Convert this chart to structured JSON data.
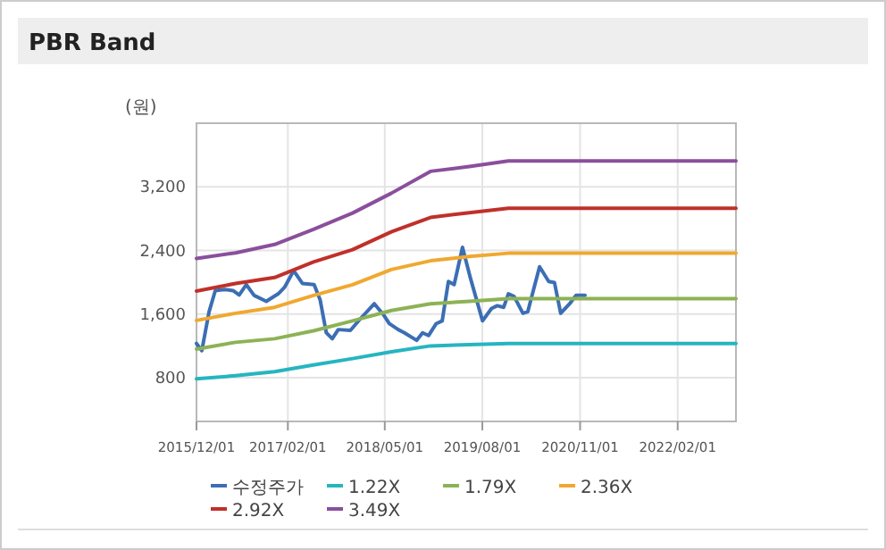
{
  "chart_data": {
    "type": "line",
    "title": "PBR Band",
    "ylabel": "(원)",
    "xlim": [
      "2015-12-01",
      "2022-11-01"
    ],
    "xticks": [
      {
        "value": "2015-12-01",
        "label": "2015/12/01"
      },
      {
        "value": "2017-02-01",
        "label": "2017/02/01"
      },
      {
        "value": "2018-05-01",
        "label": "2018/05/01"
      },
      {
        "value": "2019-08-01",
        "label": "2019/08/01"
      },
      {
        "value": "2020-11-01",
        "label": "2020/11/01"
      },
      {
        "value": "2022-02-01",
        "label": "2022/02/01"
      }
    ],
    "ylim": [
      250,
      4000
    ],
    "yticks": [
      {
        "value": 800,
        "label": "800"
      },
      {
        "value": 1600,
        "label": "1,600"
      },
      {
        "value": 2400,
        "label": "2,400"
      },
      {
        "value": 3200,
        "label": "3,200"
      }
    ],
    "grid": true,
    "legend": "bottom",
    "marker": "none",
    "line_style": "solid",
    "series": [
      {
        "name": "수정주가",
        "color": "#3c6eb4",
        "x": [
          "2015-12-01",
          "2015-12-26",
          "2016-01-29",
          "2016-02-27",
          "2016-04-08",
          "2016-05-20",
          "2016-06-18",
          "2016-07-21",
          "2016-08-27",
          "2016-10-23",
          "2016-12-18",
          "2017-01-16",
          "2017-02-28",
          "2017-04-10",
          "2017-06-04",
          "2017-07-02",
          "2017-07-31",
          "2017-08-28",
          "2017-09-25",
          "2017-11-21",
          "2018-01-03",
          "2018-03-13",
          "2018-04-24",
          "2018-05-22",
          "2018-07-03",
          "2018-08-01",
          "2018-09-27",
          "2018-10-25",
          "2018-11-22",
          "2018-12-28",
          "2019-01-25",
          "2019-02-23",
          "2019-03-22",
          "2019-04-30",
          "2019-06-07",
          "2019-08-02",
          "2019-09-13",
          "2019-10-10",
          "2019-11-09",
          "2019-12-01",
          "2019-12-28",
          "2020-02-07",
          "2020-03-01",
          "2020-04-25",
          "2020-06-07",
          "2020-07-04",
          "2020-08-02",
          "2020-09-13",
          "2020-10-13",
          "2020-11-24"
        ],
        "values": [
          1230,
          1140,
          1630,
          1895,
          1910,
          1895,
          1840,
          1970,
          1835,
          1760,
          1855,
          1935,
          2145,
          1985,
          1970,
          1780,
          1365,
          1290,
          1405,
          1395,
          1530,
          1730,
          1595,
          1480,
          1405,
          1365,
          1270,
          1365,
          1330,
          1480,
          1515,
          2010,
          1970,
          2440,
          2045,
          1515,
          1670,
          1705,
          1685,
          1855,
          1820,
          1610,
          1630,
          2195,
          2010,
          1995,
          1610,
          1730,
          1835,
          1835
        ]
      },
      {
        "name": "1.22X",
        "color": "#26b5c0",
        "x": [
          "2015-12-01",
          "2016-06-01",
          "2016-12-01",
          "2017-06-01",
          "2017-12-01",
          "2018-06-01",
          "2018-12-01",
          "2019-06-01",
          "2019-12-01",
          "2022-11-01"
        ],
        "values": [
          785,
          825,
          875,
          960,
          1040,
          1125,
          1200,
          1215,
          1230,
          1230
        ]
      },
      {
        "name": "1.79X",
        "color": "#8db255",
        "x": [
          "2015-12-01",
          "2016-06-01",
          "2016-12-01",
          "2017-06-01",
          "2017-12-01",
          "2018-06-01",
          "2018-12-01",
          "2019-06-01",
          "2019-12-01",
          "2022-11-01"
        ],
        "values": [
          1160,
          1245,
          1290,
          1390,
          1515,
          1645,
          1730,
          1760,
          1795,
          1795
        ]
      },
      {
        "name": "2.36X",
        "color": "#f0a830",
        "x": [
          "2015-12-01",
          "2016-06-01",
          "2016-12-01",
          "2017-06-01",
          "2017-12-01",
          "2018-06-01",
          "2018-12-01",
          "2019-06-01",
          "2019-12-01",
          "2022-11-01"
        ],
        "values": [
          1520,
          1610,
          1685,
          1835,
          1970,
          2160,
          2270,
          2325,
          2365,
          2365
        ]
      },
      {
        "name": "2.92X",
        "color": "#c0302a",
        "x": [
          "2015-12-01",
          "2016-06-01",
          "2016-12-01",
          "2017-06-01",
          "2017-12-01",
          "2018-06-01",
          "2018-12-01",
          "2019-06-01",
          "2019-12-01",
          "2022-11-01"
        ],
        "values": [
          1890,
          1985,
          2060,
          2255,
          2410,
          2635,
          2815,
          2875,
          2930,
          2930
        ]
      },
      {
        "name": "3.49X",
        "color": "#8a4f9c",
        "x": [
          "2015-12-01",
          "2016-06-01",
          "2016-12-01",
          "2017-06-01",
          "2017-12-01",
          "2018-06-01",
          "2018-12-01",
          "2019-06-01",
          "2019-12-01",
          "2022-11-01"
        ],
        "values": [
          2300,
          2370,
          2475,
          2665,
          2870,
          3120,
          3395,
          3455,
          3525,
          3525
        ]
      }
    ]
  }
}
